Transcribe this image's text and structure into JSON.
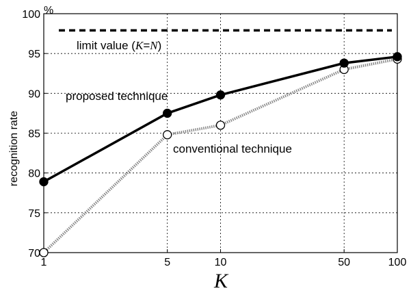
{
  "chart_data": {
    "type": "line",
    "xscale": "log",
    "x": [
      1,
      5,
      10,
      50,
      100
    ],
    "xticks": [
      "1",
      "5",
      "10",
      "50",
      "100"
    ],
    "ylim": [
      70,
      100
    ],
    "yticks": [
      "70",
      "75",
      "80",
      "85",
      "90",
      "95",
      "100"
    ],
    "yunit": "%",
    "xlabel": "K",
    "ylabel": "recognition rate",
    "grid": true,
    "series": [
      {
        "name": "proposed technique",
        "values": [
          78.9,
          87.5,
          89.8,
          93.8,
          94.6
        ],
        "color": "#000000",
        "marker": "filled-circle"
      },
      {
        "name": "conventional technique",
        "values": [
          70.0,
          84.8,
          86.0,
          93.0,
          94.3
        ],
        "color": "#888888",
        "marker": "open-circle"
      }
    ],
    "reference_line": {
      "value": 97.9,
      "label_prefix": "limit value (",
      "label_var1": "K",
      "label_eq": "=",
      "label_var2": "N",
      "label_suffix": ")"
    }
  }
}
